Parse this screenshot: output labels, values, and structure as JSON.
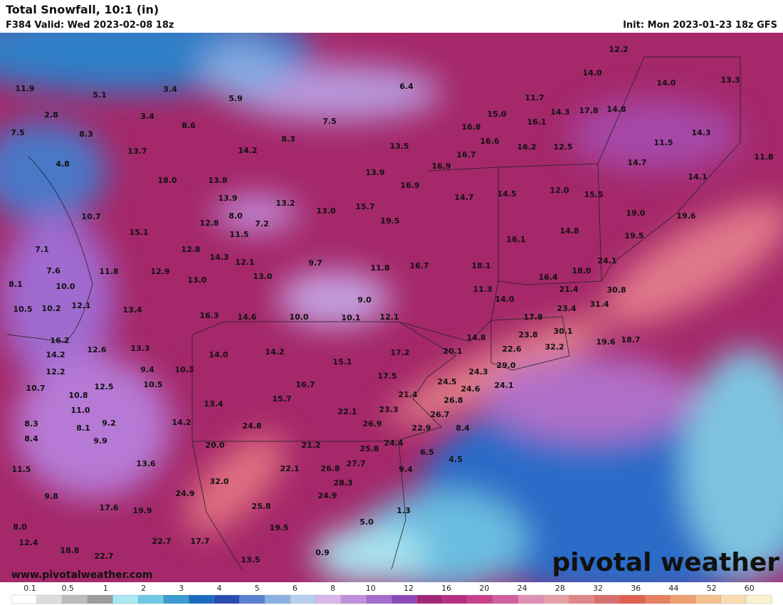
{
  "header": {
    "title": "Total Snowfall, 10:1 (in)",
    "valid": "F384 Valid: Wed 2023-02-08 18z",
    "init": "Init: Mon 2023-01-23 18z GFS"
  },
  "map": {
    "labels": [
      "11.9",
      "5.1",
      "3.4",
      "5.9",
      "6.4",
      "12.2",
      "14.0",
      "14.0",
      "13.3",
      "2.8",
      "3.4",
      "8.6",
      "7.5",
      "11.7",
      "15.0",
      "14.3",
      "17.8",
      "14.8",
      "7.5",
      "8.3",
      "8.3",
      "16.8",
      "16.1",
      "14.3",
      "13.7",
      "14.2",
      "13.5",
      "16.6",
      "16.2",
      "12.5",
      "11.5",
      "11.8",
      "4.8",
      "16.7",
      "14.7",
      "18.0",
      "13.8",
      "13.9",
      "16.9",
      "16.9",
      "14.1",
      "12.0",
      "15.5",
      "14.5",
      "14.7",
      "13.9",
      "13.2",
      "13.0",
      "15.7",
      "19.0",
      "19.6",
      "10.7",
      "8.0",
      "7.2",
      "12.8",
      "19.5",
      "15.1",
      "11.5",
      "14.8",
      "19.5",
      "16.1",
      "7.1",
      "12.8",
      "14.3",
      "12.1",
      "9.7",
      "11.8",
      "16.7",
      "18.1",
      "24.1",
      "7.6",
      "11.8",
      "12.9",
      "13.0",
      "13.0",
      "16.4",
      "18.0",
      "8.1",
      "10.0",
      "21.4",
      "30.8",
      "11.3",
      "9.0",
      "14.0",
      "10.5",
      "10.2",
      "12.1",
      "13.4",
      "16.3",
      "14.6",
      "10.0",
      "10.1",
      "12.1",
      "23.4",
      "31.4",
      "17.8",
      "30.1",
      "23.8",
      "14.8",
      "16.2",
      "19.6",
      "18.7",
      "12.6",
      "13.3",
      "32.2",
      "22.6",
      "20.1",
      "14.2",
      "14.0",
      "14.2",
      "17.2",
      "15.1",
      "9.4",
      "10.3",
      "29.0",
      "24.3",
      "12.2",
      "17.5",
      "24.5",
      "10.7",
      "12.5",
      "10.5",
      "16.7",
      "24.6",
      "24.1",
      "10.8",
      "21.4",
      "15.7",
      "13.4",
      "26.8",
      "11.0",
      "22.1",
      "23.3",
      "26.7",
      "8.3",
      "9.2",
      "14.2",
      "24.8",
      "26.9",
      "22.9",
      "8.1",
      "8.4",
      "8.4",
      "9.9",
      "20.0",
      "21.2",
      "25.8",
      "24.4",
      "6.5",
      "13.6",
      "22.1",
      "27.7",
      "4.5",
      "9.4",
      "11.5",
      "26.8",
      "32.0",
      "28.3",
      "9.8",
      "24.9",
      "24.9",
      "17.6",
      "19.9",
      "25.8",
      "1.3",
      "5.0",
      "8.0",
      "19.5",
      "12.4",
      "22.7",
      "17.7",
      "0.9",
      "18.8",
      "22.7",
      "13.5"
    ]
  },
  "credits": {
    "website": "www.pivotalweather.com",
    "watermark": "pivotal weather"
  },
  "legend": {
    "ticks": [
      "0.1",
      "0.5",
      "1",
      "2",
      "3",
      "4",
      "5",
      "6",
      "8",
      "10",
      "12",
      "16",
      "20",
      "24",
      "28",
      "32",
      "36",
      "44",
      "52",
      "60"
    ]
  }
}
